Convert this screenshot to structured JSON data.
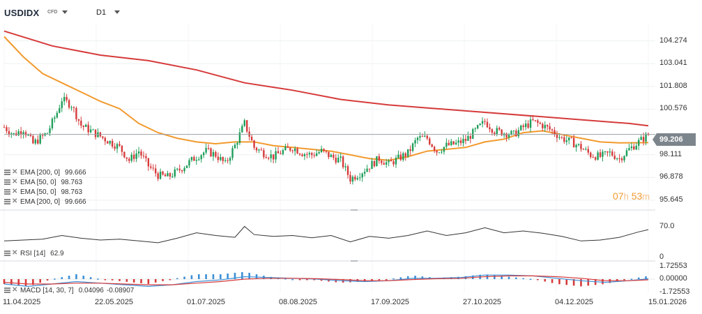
{
  "toolbar": {
    "symbol": "USDIDX",
    "instrument_type": "CFD",
    "timeframe": "D1"
  },
  "price_panel": {
    "current_price": "99.206",
    "countdown": {
      "hours": "07",
      "hours_unit": "h",
      "minutes": "53",
      "minutes_unit": "m"
    },
    "legend": [
      {
        "name": "EMA",
        "params": "[200, 0]",
        "value": "99.666"
      },
      {
        "name": "EMA",
        "params": "[50, 0]",
        "value": "98.763"
      },
      {
        "name": "EMA",
        "params": "[50, 0]",
        "value": "98.763"
      },
      {
        "name": "EMA",
        "params": "[200, 0]",
        "value": "99.666"
      }
    ]
  },
  "rsi_panel": {
    "label": "RSI [14]",
    "value": "62.9"
  },
  "macd_panel": {
    "label": "MACD [14, 30, 7]",
    "value1": "0.04096",
    "value2": "-0.08907"
  },
  "colors": {
    "bull": "#1e9e5a",
    "bear": "#d63a3a",
    "ema200": "#d63a3a",
    "ema50": "#f29a2e",
    "price_tag": "#7d858c",
    "rsi_line": "#333333",
    "macd_line": "#3d8fd6",
    "signal_line": "#d63a3a"
  },
  "chart_data": {
    "type": "candlestick",
    "symbol": "USDIDX",
    "timeframe": "D1",
    "x_tick_labels": [
      "11.04.2025",
      "22.05.2025",
      "01.07.2025",
      "08.08.2025",
      "17.09.2025",
      "27.10.2025",
      "04.12.2025",
      "15.01.2026"
    ],
    "y_tick_labels": [
      "104.274",
      "103.041",
      "101.808",
      "100.576",
      "99.206",
      "98.111",
      "96.878",
      "95.645"
    ],
    "ylim": [
      95.3,
      105.2
    ],
    "rsi": {
      "ticks": [
        "70.0",
        "0"
      ],
      "last": 62.9
    },
    "macd": {
      "ticks": [
        "1.72553",
        "0.00000",
        "-1.72553"
      ]
    },
    "anchors": [
      [
        0,
        99.6
      ],
      [
        4,
        99.2
      ],
      [
        8,
        99.5
      ],
      [
        12,
        98.7
      ],
      [
        18,
        99.3
      ],
      [
        22,
        100.4
      ],
      [
        24,
        101.1
      ],
      [
        28,
        100.8
      ],
      [
        32,
        99.7
      ],
      [
        36,
        99.4
      ],
      [
        40,
        99.1
      ],
      [
        44,
        98.8
      ],
      [
        48,
        98.5
      ],
      [
        52,
        97.8
      ],
      [
        56,
        98.3
      ],
      [
        60,
        97.5
      ],
      [
        64,
        97.0
      ],
      [
        68,
        96.9
      ],
      [
        72,
        97.2
      ],
      [
        76,
        97.6
      ],
      [
        80,
        98.0
      ],
      [
        84,
        98.3
      ],
      [
        88,
        98.1
      ],
      [
        92,
        97.6
      ],
      [
        96,
        98.6
      ],
      [
        100,
        99.8
      ],
      [
        104,
        98.5
      ],
      [
        108,
        98.2
      ],
      [
        112,
        98.0
      ],
      [
        116,
        98.3
      ],
      [
        120,
        98.5
      ],
      [
        124,
        98.2
      ],
      [
        128,
        98.1
      ],
      [
        132,
        98.3
      ],
      [
        136,
        98.0
      ],
      [
        140,
        97.8
      ],
      [
        144,
        96.8
      ],
      [
        148,
        97.1
      ],
      [
        152,
        97.5
      ],
      [
        156,
        97.9
      ],
      [
        160,
        97.6
      ],
      [
        164,
        97.9
      ],
      [
        168,
        98.2
      ],
      [
        172,
        99.0
      ],
      [
        176,
        99.0
      ],
      [
        180,
        98.3
      ],
      [
        184,
        98.6
      ],
      [
        188,
        98.7
      ],
      [
        192,
        98.9
      ],
      [
        196,
        99.4
      ],
      [
        200,
        99.9
      ],
      [
        204,
        99.4
      ],
      [
        208,
        99.3
      ],
      [
        212,
        99.2
      ],
      [
        216,
        99.6
      ],
      [
        220,
        99.9
      ],
      [
        224,
        99.7
      ],
      [
        228,
        99.4
      ],
      [
        232,
        99.0
      ],
      [
        236,
        98.8
      ],
      [
        240,
        98.5
      ],
      [
        244,
        98.1
      ],
      [
        248,
        98.0
      ],
      [
        252,
        98.2
      ],
      [
        256,
        97.9
      ],
      [
        260,
        98.4
      ],
      [
        264,
        98.8
      ],
      [
        268,
        99.2
      ]
    ],
    "ema200": [
      [
        0,
        104.8
      ],
      [
        20,
        104.0
      ],
      [
        40,
        103.5
      ],
      [
        60,
        103.2
      ],
      [
        80,
        102.7
      ],
      [
        100,
        102.0
      ],
      [
        120,
        101.6
      ],
      [
        140,
        101.1
      ],
      [
        160,
        100.8
      ],
      [
        180,
        100.6
      ],
      [
        200,
        100.4
      ],
      [
        220,
        100.2
      ],
      [
        240,
        100.0
      ],
      [
        260,
        99.8
      ],
      [
        268,
        99.67
      ]
    ],
    "ema50": [
      [
        0,
        104.5
      ],
      [
        8,
        103.4
      ],
      [
        16,
        102.5
      ],
      [
        24,
        102.0
      ],
      [
        32,
        101.5
      ],
      [
        40,
        101.0
      ],
      [
        48,
        100.6
      ],
      [
        56,
        99.8
      ],
      [
        64,
        99.3
      ],
      [
        72,
        99.0
      ],
      [
        80,
        98.8
      ],
      [
        88,
        98.7
      ],
      [
        96,
        98.8
      ],
      [
        104,
        98.8
      ],
      [
        112,
        98.6
      ],
      [
        120,
        98.5
      ],
      [
        128,
        98.4
      ],
      [
        136,
        98.3
      ],
      [
        144,
        98.1
      ],
      [
        152,
        97.9
      ],
      [
        160,
        97.8
      ],
      [
        168,
        98.0
      ],
      [
        176,
        98.3
      ],
      [
        184,
        98.4
      ],
      [
        192,
        98.5
      ],
      [
        200,
        98.8
      ],
      [
        208,
        98.95
      ],
      [
        216,
        99.3
      ],
      [
        224,
        99.4
      ],
      [
        232,
        99.2
      ],
      [
        240,
        99.0
      ],
      [
        248,
        98.8
      ],
      [
        256,
        98.75
      ],
      [
        268,
        98.76
      ]
    ],
    "rsi_series": [
      [
        0,
        38
      ],
      [
        8,
        40
      ],
      [
        16,
        42
      ],
      [
        24,
        50
      ],
      [
        32,
        44
      ],
      [
        40,
        40
      ],
      [
        48,
        42
      ],
      [
        56,
        38
      ],
      [
        64,
        34
      ],
      [
        72,
        44
      ],
      [
        80,
        56
      ],
      [
        88,
        50
      ],
      [
        96,
        46
      ],
      [
        100,
        70
      ],
      [
        104,
        52
      ],
      [
        112,
        48
      ],
      [
        120,
        50
      ],
      [
        128,
        45
      ],
      [
        136,
        50
      ],
      [
        144,
        36
      ],
      [
        152,
        48
      ],
      [
        160,
        44
      ],
      [
        168,
        50
      ],
      [
        176,
        60
      ],
      [
        184,
        50
      ],
      [
        192,
        56
      ],
      [
        200,
        67
      ],
      [
        208,
        56
      ],
      [
        216,
        60
      ],
      [
        224,
        55
      ],
      [
        232,
        48
      ],
      [
        240,
        38
      ],
      [
        248,
        40
      ],
      [
        256,
        46
      ],
      [
        264,
        58
      ],
      [
        268,
        63
      ]
    ],
    "macd_series": [
      [
        0,
        -0.6
      ],
      [
        10,
        -0.9
      ],
      [
        20,
        -0.6
      ],
      [
        30,
        -0.3
      ],
      [
        40,
        -0.5
      ],
      [
        50,
        -0.7
      ],
      [
        60,
        -0.9
      ],
      [
        70,
        -0.7
      ],
      [
        80,
        -0.3
      ],
      [
        90,
        -0.1
      ],
      [
        100,
        0.3
      ],
      [
        110,
        0.2
      ],
      [
        120,
        0.1
      ],
      [
        130,
        0.0
      ],
      [
        140,
        -0.2
      ],
      [
        150,
        -0.3
      ],
      [
        160,
        -0.2
      ],
      [
        170,
        0.1
      ],
      [
        180,
        0.1
      ],
      [
        190,
        0.2
      ],
      [
        200,
        0.5
      ],
      [
        210,
        0.5
      ],
      [
        220,
        0.4
      ],
      [
        230,
        0.1
      ],
      [
        240,
        -0.2
      ],
      [
        250,
        -0.4
      ],
      [
        260,
        -0.2
      ],
      [
        268,
        0.04
      ]
    ],
    "signal_series": [
      [
        0,
        -0.4
      ],
      [
        10,
        -0.6
      ],
      [
        20,
        -0.6
      ],
      [
        30,
        -0.5
      ],
      [
        40,
        -0.5
      ],
      [
        50,
        -0.6
      ],
      [
        60,
        -0.7
      ],
      [
        70,
        -0.7
      ],
      [
        80,
        -0.5
      ],
      [
        90,
        -0.3
      ],
      [
        100,
        0.0
      ],
      [
        110,
        0.1
      ],
      [
        120,
        0.1
      ],
      [
        130,
        0.05
      ],
      [
        140,
        -0.05
      ],
      [
        150,
        -0.2
      ],
      [
        160,
        -0.2
      ],
      [
        170,
        -0.05
      ],
      [
        180,
        0.05
      ],
      [
        190,
        0.1
      ],
      [
        200,
        0.3
      ],
      [
        210,
        0.4
      ],
      [
        220,
        0.4
      ],
      [
        230,
        0.3
      ],
      [
        240,
        0.1
      ],
      [
        250,
        -0.2
      ],
      [
        260,
        -0.2
      ],
      [
        268,
        -0.09
      ]
    ]
  }
}
